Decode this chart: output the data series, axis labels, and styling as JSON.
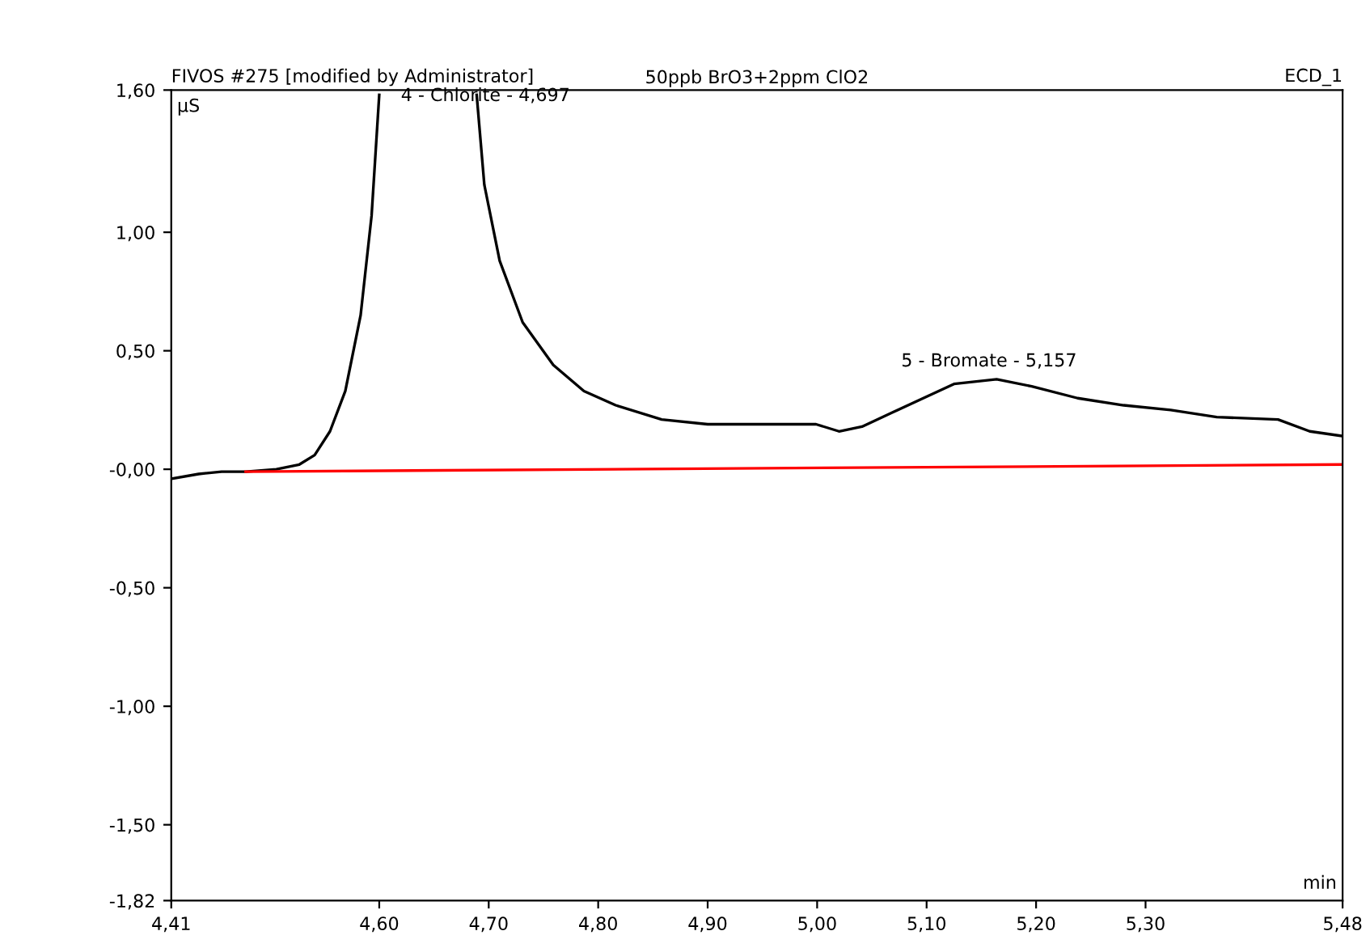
{
  "chart_data": {
    "type": "line",
    "title": "50ppb BrO3+2ppm ClO2",
    "xlabel": "min",
    "ylabel": "µS",
    "annotations": [
      "FIVOS #275 [modified by Administrator]",
      "ECD_1",
      {
        "text": "4 - Chlorite - 4,697",
        "x": 4.697,
        "y": 1.5
      },
      {
        "text": "5 - Bromate - 5,157",
        "x": 5.157,
        "y": 0.38
      }
    ],
    "series": [
      {
        "color": "#000000",
        "x": [
          4.41,
          4.435,
          4.456,
          4.478,
          4.506,
          4.527,
          4.541,
          4.555,
          4.569,
          4.583,
          4.593,
          4.6,
          4.645,
          4.689,
          4.696,
          4.71,
          4.731,
          4.759,
          4.787,
          4.816,
          4.858,
          4.9,
          4.942,
          4.999,
          5.02,
          5.041,
          5.069,
          5.097,
          5.125,
          5.164,
          5.196,
          5.238,
          5.28,
          5.323,
          5.365,
          5.421,
          5.45,
          5.48
        ],
        "values": [
          -0.04,
          -0.02,
          -0.01,
          -0.01,
          0,
          0.02,
          0.06,
          0.16,
          0.33,
          0.65,
          1.07,
          1.58,
          null,
          1.58,
          1.2,
          0.88,
          0.62,
          0.44,
          0.33,
          0.27,
          0.21,
          0.19,
          0.19,
          0.19,
          0.16,
          0.18,
          0.24,
          0.3,
          0.36,
          0.38,
          0.35,
          0.3,
          0.27,
          0.25,
          0.22,
          0.21,
          0.16,
          0.14
        ]
      },
      {
        "color": "#ff0000",
        "x": [
          4.478,
          5.48
        ],
        "values": [
          -0.01,
          0.02
        ]
      }
    ],
    "xlim": [
      4.41,
      5.48
    ],
    "xticks": [
      {
        "value": 4.41,
        "label": "4,41"
      },
      {
        "value": 4.6,
        "label": "4,60"
      },
      {
        "value": 4.7,
        "label": "4,70"
      },
      {
        "value": 4.8,
        "label": "4,80"
      },
      {
        "value": 4.9,
        "label": "4,90"
      },
      {
        "value": 5.0,
        "label": "5,00"
      },
      {
        "value": 5.1,
        "label": "5,10"
      },
      {
        "value": 5.2,
        "label": "5,20"
      },
      {
        "value": 5.3,
        "label": "5,30"
      },
      {
        "value": 5.48,
        "label": "5,48"
      }
    ],
    "ylim": [
      -1.82,
      1.6
    ],
    "yticks": [
      {
        "value": -1.82,
        "label": "-1,82"
      },
      {
        "value": -1.5,
        "label": "-1,50"
      },
      {
        "value": -1.0,
        "label": "-1,00"
      },
      {
        "value": -0.5,
        "label": "-0,50"
      },
      {
        "value": 0,
        "label": "-0,00"
      },
      {
        "value": 0.5,
        "label": "0,50"
      },
      {
        "value": 1.0,
        "label": "1,00"
      },
      {
        "value": 1.6,
        "label": "1,60"
      }
    ],
    "grid": false,
    "legend": false
  }
}
